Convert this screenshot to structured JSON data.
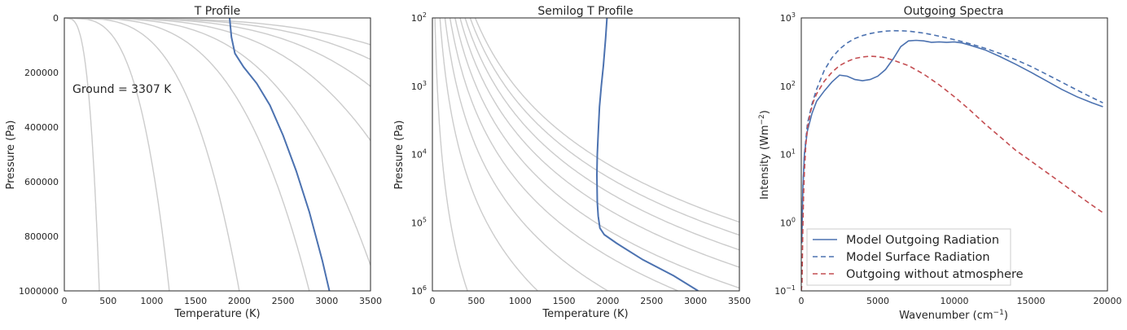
{
  "chart_data": [
    {
      "type": "line",
      "title": "T Profile",
      "xlabel": "Temperature (K)",
      "ylabel": "Pressure (Pa)",
      "xlim": [
        0,
        3500
      ],
      "ylim": [
        1000000,
        0
      ],
      "yscale": "linear",
      "xticks": [
        "0",
        "500",
        "1000",
        "1500",
        "2000",
        "2500",
        "3000",
        "3500"
      ],
      "yticks": [
        "0",
        "200000",
        "400000",
        "600000",
        "800000",
        "1000000"
      ],
      "annotation": "Ground =  3307 K",
      "reference_color": "#cccccc",
      "profile_color": "#4c72b0",
      "reference_curves": [
        {
          "exponent": 0.286,
          "values": [
            400
          ]
        },
        {
          "exponent": 0.286,
          "values": [
            1200
          ]
        },
        {
          "exponent": 0.286,
          "values": [
            2000
          ]
        },
        {
          "exponent": 0.286,
          "values": [
            2800
          ]
        },
        {
          "exponent": 0.286,
          "values": [
            3600
          ]
        },
        {
          "exponent": 0.286,
          "values": [
            4400
          ]
        },
        {
          "exponent": 0.286,
          "values": [
            5200
          ]
        },
        {
          "exponent": 0.286,
          "values": [
            6000
          ]
        },
        {
          "exponent": 0.286,
          "values": [
            6800
          ]
        }
      ],
      "profile": {
        "x": [
          1890,
          1895,
          1910,
          1950,
          2050,
          2200,
          2350,
          2500,
          2650,
          2800,
          2950,
          3030
        ],
        "y": [
          0,
          20000,
          70000,
          130000,
          180000,
          240000,
          320000,
          430000,
          560000,
          710000,
          890000,
          1000000
        ]
      }
    },
    {
      "type": "line",
      "title": "Semilog T Profile",
      "xlabel": "Temperature (K)",
      "ylabel": "Pressure (Pa)",
      "xlim": [
        0,
        3500
      ],
      "ylim": [
        1000000,
        100
      ],
      "yscale": "log",
      "xticks": [
        "0",
        "500",
        "1000",
        "1500",
        "2000",
        "2500",
        "3000",
        "3500"
      ],
      "yticks": [
        {
          "base": "10",
          "exp": "2"
        },
        {
          "base": "10",
          "exp": "3"
        },
        {
          "base": "10",
          "exp": "4"
        },
        {
          "base": "10",
          "exp": "5"
        },
        {
          "base": "10",
          "exp": "6"
        }
      ],
      "reference_color": "#cccccc",
      "profile_color": "#4c72b0",
      "reference_curves": [
        {
          "exponent": 0.286,
          "values": [
            400
          ]
        },
        {
          "exponent": 0.286,
          "values": [
            1200
          ]
        },
        {
          "exponent": 0.286,
          "values": [
            2000
          ]
        },
        {
          "exponent": 0.286,
          "values": [
            2800
          ]
        },
        {
          "exponent": 0.286,
          "values": [
            3600
          ]
        },
        {
          "exponent": 0.286,
          "values": [
            4400
          ]
        },
        {
          "exponent": 0.286,
          "values": [
            5200
          ]
        },
        {
          "exponent": 0.286,
          "values": [
            6000
          ]
        },
        {
          "exponent": 0.286,
          "values": [
            6800
          ]
        }
      ],
      "profile": {
        "x": [
          1990,
          1975,
          1950,
          1925,
          1905,
          1890,
          1880,
          1875,
          1880,
          1890,
          1910,
          1960,
          2100,
          2400,
          2750,
          3030
        ],
        "y": [
          100,
          200,
          500,
          1000,
          2000,
          5000,
          10000,
          20000,
          50000,
          80000,
          120000,
          150000,
          200000,
          350000,
          600000,
          1000000
        ]
      }
    },
    {
      "type": "line",
      "title": "Outgoing Spectra",
      "xlabel": "Wavenumber (cm",
      "xlabel_sup": "−1",
      "xlabel_end": ")",
      "ylabel": "Intensity (Wm",
      "ylabel_sup": "−2",
      "ylabel_end": ")",
      "xlim": [
        0,
        20000
      ],
      "ylim": [
        0.1,
        1000
      ],
      "yscale": "log",
      "xticks": [
        "0",
        "5000",
        "10000",
        "15000",
        "20000"
      ],
      "yticks": [
        {
          "base": "10",
          "exp": "−1"
        },
        {
          "base": "10",
          "exp": "0"
        },
        {
          "base": "10",
          "exp": "1"
        },
        {
          "base": "10",
          "exp": "2"
        },
        {
          "base": "10",
          "exp": "3"
        }
      ],
      "legend_position": "lower-left",
      "series": [
        {
          "name": "Model Outgoing Radiation",
          "color": "#4c72b0",
          "style": "solid",
          "x": [
            30,
            100,
            200,
            400,
            700,
            1000,
            1500,
            2000,
            2500,
            3000,
            3500,
            4000,
            4500,
            5000,
            5500,
            6000,
            6500,
            7000,
            7500,
            8000,
            8500,
            9000,
            9500,
            10000,
            10500,
            11000,
            12000,
            13000,
            14000,
            15000,
            16000,
            17000,
            18000,
            19000,
            19700
          ],
          "y": [
            0.5,
            3,
            10,
            22,
            40,
            60,
            85,
            115,
            145,
            140,
            125,
            120,
            125,
            140,
            175,
            250,
            380,
            460,
            470,
            460,
            440,
            445,
            440,
            445,
            430,
            400,
            340,
            270,
            210,
            160,
            120,
            90,
            70,
            57,
            50
          ]
        },
        {
          "name": "Model Surface Radiation",
          "color": "#4c72b0",
          "style": "dashed",
          "x": [
            30,
            100,
            200,
            400,
            700,
            1000,
            1500,
            2000,
            2500,
            3000,
            3500,
            4000,
            4500,
            5000,
            5500,
            6000,
            6500,
            7000,
            7500,
            8000,
            8500,
            9000,
            9500,
            10000,
            10500,
            11000,
            12000,
            13000,
            14000,
            15000,
            16000,
            17000,
            18000,
            19000,
            19700
          ],
          "y": [
            0.5,
            3,
            10,
            28,
            55,
            90,
            170,
            260,
            350,
            430,
            500,
            550,
            590,
            620,
            640,
            650,
            648,
            640,
            620,
            600,
            570,
            540,
            510,
            480,
            450,
            420,
            360,
            300,
            245,
            195,
            150,
            115,
            88,
            68,
            57
          ]
        },
        {
          "name": "Outgoing without atmosphere",
          "color": "#c44e52",
          "style": "dashed",
          "x": [
            0,
            50,
            100,
            150,
            200,
            300,
            400,
            600,
            800,
            1000,
            1500,
            2000,
            2500,
            3000,
            3500,
            4000,
            4500,
            5000,
            5500,
            6000,
            7000,
            8000,
            9000,
            10000,
            11000,
            12000,
            13000,
            14000,
            15000,
            16000,
            17000,
            18000,
            19000,
            19700
          ],
          "y": [
            0.1,
            0.13,
            0.8,
            2.5,
            5.5,
            14,
            24,
            42,
            60,
            77,
            118,
            160,
            200,
            230,
            255,
            268,
            275,
            270,
            260,
            240,
            200,
            150,
            105,
            70,
            45,
            28,
            18,
            11.5,
            8,
            5.5,
            3.8,
            2.6,
            1.8,
            1.4
          ]
        }
      ]
    }
  ]
}
